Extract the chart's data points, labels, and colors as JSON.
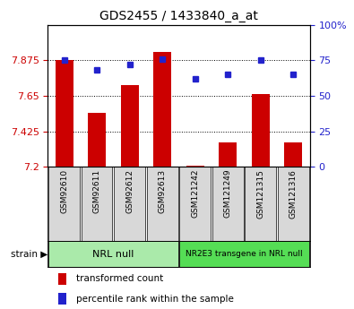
{
  "title": "GDS2455 / 1433840_a_at",
  "samples": [
    "GSM92610",
    "GSM92611",
    "GSM92612",
    "GSM92613",
    "GSM121242",
    "GSM121249",
    "GSM121315",
    "GSM121316"
  ],
  "transformed_counts": [
    7.875,
    7.54,
    7.72,
    7.93,
    7.205,
    7.355,
    7.66,
    7.355
  ],
  "percentile_ranks": [
    75,
    68,
    72,
    76,
    62,
    65,
    75,
    65
  ],
  "groups": [
    {
      "label": "NRL null",
      "color": "#aaeaaa",
      "start": 0,
      "end": 3
    },
    {
      "label": "NR2E3 transgene in NRL null",
      "color": "#55dd55",
      "start": 4,
      "end": 7
    }
  ],
  "ylim_left": [
    7.2,
    8.1
  ],
  "ylim_right": [
    0,
    100
  ],
  "yticks_left": [
    7.2,
    7.425,
    7.65,
    7.875
  ],
  "yticks_right": [
    0,
    25,
    50,
    75,
    100
  ],
  "bar_color": "#cc0000",
  "dot_color": "#2222cc",
  "bar_width": 0.55,
  "legend_items": [
    "transformed count",
    "percentile rank within the sample"
  ],
  "xlim": [
    -0.5,
    7.5
  ],
  "n": 8
}
